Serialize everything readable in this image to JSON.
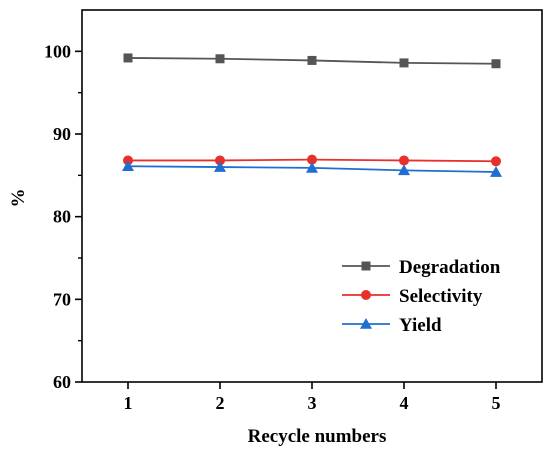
{
  "chart_data": {
    "type": "line",
    "title": "",
    "xlabel": "Recycle numbers",
    "ylabel": "%",
    "x": [
      1,
      2,
      3,
      4,
      5
    ],
    "xlim": [
      0.5,
      5.5
    ],
    "ylim": [
      60,
      105
    ],
    "xticks": [
      "1",
      "2",
      "3",
      "4",
      "5"
    ],
    "yticks": [
      "60",
      "70",
      "80",
      "90",
      "100"
    ],
    "grid": false,
    "legend_position": "bottom-right",
    "series": [
      {
        "name": "Degradation",
        "values": [
          99.2,
          99.1,
          98.9,
          98.6,
          98.5
        ],
        "color": "#555555",
        "marker": "square"
      },
      {
        "name": "Selectivity",
        "values": [
          86.8,
          86.8,
          86.9,
          86.8,
          86.7
        ],
        "color": "#e8302a",
        "marker": "circle"
      },
      {
        "name": "Yield",
        "values": [
          86.1,
          86.0,
          85.9,
          85.6,
          85.4
        ],
        "color": "#1f6fd1",
        "marker": "triangle"
      }
    ]
  }
}
